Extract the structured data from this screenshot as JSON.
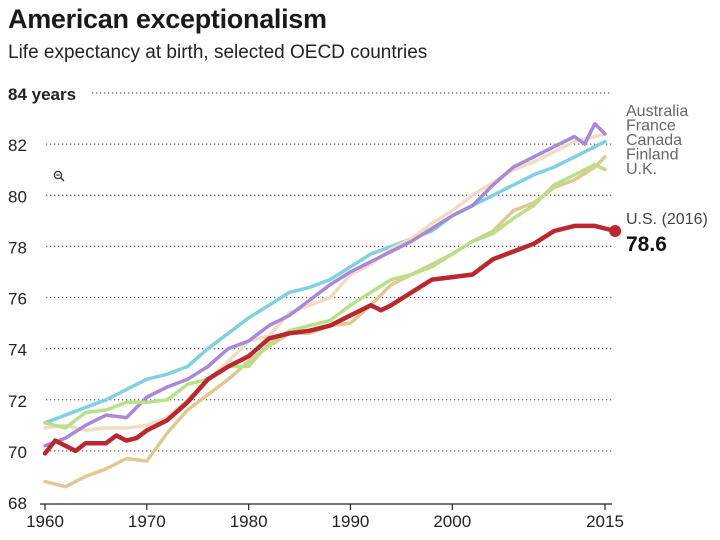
{
  "chart_data": {
    "type": "line",
    "title": "American exceptionalism",
    "subtitle": "Life expectancy at birth, selected OECD countries",
    "ylabel_top": "84 years",
    "ylim": [
      68,
      84
    ],
    "y_ticks": [
      68,
      70,
      72,
      74,
      76,
      78,
      80,
      82
    ],
    "y_tick_labels": [
      "68",
      "70",
      "72",
      "74",
      "76",
      "78",
      "80",
      "82"
    ],
    "xlim": [
      1960,
      2016
    ],
    "x_ticks": [
      1960,
      1970,
      1980,
      1990,
      2000,
      2015
    ],
    "x_tick_labels": [
      "1960",
      "1970",
      "1980",
      "1990",
      "2000",
      "2015"
    ],
    "grid": true,
    "legend": [
      "Australia",
      "France",
      "Canada",
      "Finland",
      "U.K."
    ],
    "us_label": "U.S. (2016)",
    "us_value": "78.6",
    "series": [
      {
        "name": "Canada",
        "color": "#7fd0e0",
        "x": [
          1960,
          1962,
          1964,
          1966,
          1968,
          1970,
          1972,
          1974,
          1976,
          1978,
          1980,
          1982,
          1984,
          1986,
          1988,
          1990,
          1992,
          1994,
          1996,
          1998,
          2000,
          2002,
          2004,
          2006,
          2008,
          2010,
          2012,
          2014,
          2015
        ],
        "values": [
          71.1,
          71.4,
          71.7,
          72.0,
          72.4,
          72.8,
          73.0,
          73.3,
          74.0,
          74.6,
          75.2,
          75.7,
          76.2,
          76.4,
          76.7,
          77.2,
          77.7,
          78.0,
          78.3,
          78.6,
          79.2,
          79.6,
          80.0,
          80.4,
          80.8,
          81.1,
          81.5,
          81.9,
          82.1
        ]
      },
      {
        "name": "Australia",
        "color": "#f0dcc0",
        "x": [
          1960,
          1962,
          1964,
          1966,
          1968,
          1970,
          1972,
          1974,
          1976,
          1978,
          1980,
          1982,
          1984,
          1986,
          1988,
          1990,
          1992,
          1994,
          1996,
          1998,
          2000,
          2002,
          2004,
          2006,
          2008,
          2010,
          2012,
          2014,
          2015
        ],
        "values": [
          70.9,
          71.0,
          70.8,
          70.9,
          70.9,
          71.0,
          71.3,
          72.0,
          72.8,
          73.5,
          74.3,
          74.5,
          75.4,
          75.7,
          76.0,
          76.9,
          77.3,
          77.9,
          78.3,
          78.9,
          79.4,
          80.0,
          80.5,
          81.0,
          81.3,
          81.7,
          82.1,
          82.3,
          82.4
        ]
      },
      {
        "name": "France",
        "color": "#a888d8",
        "x": [
          1960,
          1962,
          1964,
          1966,
          1968,
          1970,
          1972,
          1974,
          1976,
          1978,
          1980,
          1982,
          1984,
          1986,
          1988,
          1990,
          1992,
          1994,
          1996,
          1998,
          2000,
          2002,
          2004,
          2006,
          2008,
          2010,
          2012,
          2013,
          2014,
          2015
        ],
        "values": [
          70.2,
          70.5,
          71.0,
          71.4,
          71.3,
          72.1,
          72.5,
          72.8,
          73.3,
          74.0,
          74.3,
          74.9,
          75.3,
          75.9,
          76.5,
          77.0,
          77.4,
          77.8,
          78.2,
          78.7,
          79.2,
          79.6,
          80.4,
          81.1,
          81.5,
          81.9,
          82.3,
          82.0,
          82.8,
          82.4
        ]
      },
      {
        "name": "Finland",
        "color": "#e0c890",
        "x": [
          1960,
          1962,
          1964,
          1966,
          1968,
          1970,
          1972,
          1974,
          1976,
          1978,
          1980,
          1982,
          1984,
          1986,
          1988,
          1990,
          1992,
          1994,
          1996,
          1998,
          2000,
          2002,
          2004,
          2006,
          2008,
          2010,
          2012,
          2014,
          2015
        ],
        "values": [
          68.8,
          68.6,
          69.0,
          69.3,
          69.7,
          69.6,
          70.7,
          71.6,
          72.2,
          72.8,
          73.5,
          74.1,
          74.6,
          74.6,
          74.9,
          75.0,
          75.7,
          76.5,
          76.9,
          77.3,
          77.7,
          78.2,
          78.6,
          79.4,
          79.7,
          80.3,
          80.6,
          81.1,
          81.5
        ]
      },
      {
        "name": "U.K.",
        "color": "#b8e088",
        "x": [
          1960,
          1962,
          1964,
          1966,
          1968,
          1970,
          1972,
          1974,
          1976,
          1978,
          1980,
          1982,
          1984,
          1986,
          1988,
          1990,
          1992,
          1994,
          1996,
          1998,
          2000,
          2002,
          2004,
          2006,
          2008,
          2010,
          2012,
          2014,
          2015
        ],
        "values": [
          71.1,
          70.9,
          71.5,
          71.6,
          71.9,
          71.9,
          72.0,
          72.6,
          72.8,
          73.3,
          73.3,
          74.2,
          74.7,
          74.9,
          75.1,
          75.7,
          76.2,
          76.7,
          76.9,
          77.2,
          77.7,
          78.2,
          78.5,
          79.1,
          79.6,
          80.4,
          80.8,
          81.2,
          81.0
        ]
      },
      {
        "name": "U.S.",
        "color": "#b8282e",
        "x": [
          1960,
          1961,
          1962,
          1963,
          1964,
          1965,
          1966,
          1967,
          1968,
          1969,
          1970,
          1972,
          1974,
          1976,
          1978,
          1980,
          1982,
          1984,
          1986,
          1988,
          1990,
          1992,
          1993,
          1994,
          1996,
          1998,
          2000,
          2002,
          2004,
          2006,
          2008,
          2010,
          2012,
          2014,
          2015,
          2016
        ],
        "values": [
          69.9,
          70.4,
          70.2,
          70.0,
          70.3,
          70.3,
          70.3,
          70.6,
          70.4,
          70.5,
          70.8,
          71.2,
          71.9,
          72.8,
          73.3,
          73.7,
          74.4,
          74.6,
          74.7,
          74.9,
          75.3,
          75.7,
          75.5,
          75.7,
          76.2,
          76.7,
          76.8,
          76.9,
          77.5,
          77.8,
          78.1,
          78.6,
          78.8,
          78.8,
          78.7,
          78.6
        ]
      }
    ]
  }
}
